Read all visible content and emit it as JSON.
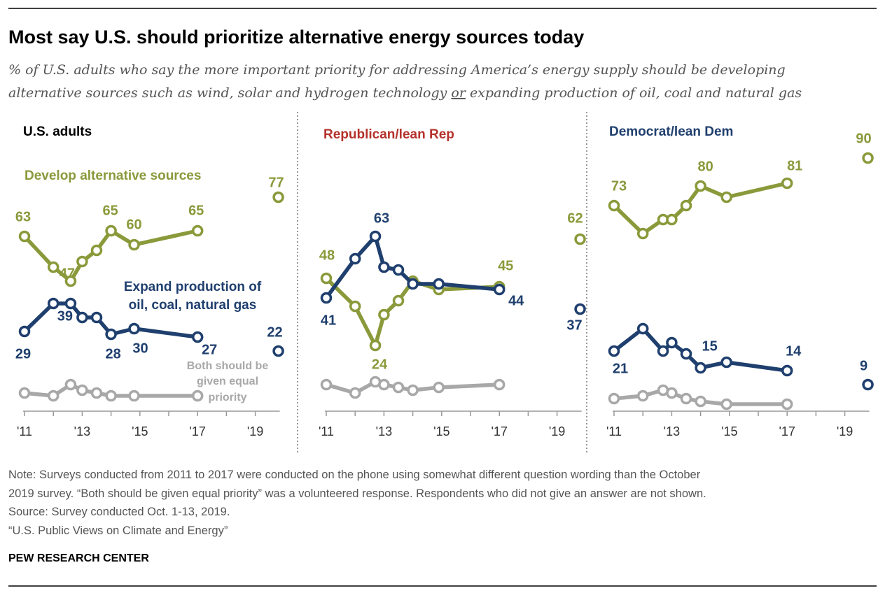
{
  "title": "Most say U.S. should prioritize alternative energy sources today",
  "subtitle": {
    "line1": "% of U.S. adults who say the more important priority for addressing America’s energy supply should be developing",
    "line2_a": "alternative sources such as wind, solar and hydrogen technology ",
    "line2_or": "or",
    "line2_b": " expanding production of oil, coal and natural gas"
  },
  "colors": {
    "alt": "#8a9a3b",
    "fossil": "#1f3f6e",
    "both": "#a8a8a8",
    "rep": "#b5322c",
    "dem": "#1f3f6e"
  },
  "annotations": {
    "alt": "Develop alternative sources",
    "fossil1": "Expand production of",
    "fossil2": "oil, coal, natural gas",
    "both1": "Both should be",
    "both2": "given equal",
    "both3": "priority"
  },
  "chart_data": [
    {
      "type": "line",
      "title": "U.S. adults",
      "x_ticks": [
        "'11",
        "'13",
        "'15",
        "'17",
        "'19"
      ],
      "ylim": [
        0,
        100
      ],
      "series": [
        {
          "name": "Develop alternative sources",
          "x": [
            2011,
            2012,
            2012.6,
            2013,
            2013.5,
            2014,
            2014.8,
            2017,
            2019.8
          ],
          "values": [
            63,
            52,
            47,
            54,
            58,
            65,
            60,
            65,
            77
          ]
        },
        {
          "name": "Expand production of oil, coal, natural gas",
          "x": [
            2011,
            2012,
            2012.6,
            2013,
            2013.5,
            2014,
            2014.8,
            2017,
            2019.8
          ],
          "values": [
            29,
            39,
            39,
            34,
            34,
            28,
            30,
            27,
            22
          ]
        },
        {
          "name": "Both should be given equal priority",
          "x": [
            2011,
            2012,
            2012.6,
            2013,
            2013.5,
            2014,
            2014.8,
            2017
          ],
          "values": [
            7,
            6,
            10,
            8,
            7,
            6,
            6,
            6
          ]
        }
      ]
    },
    {
      "type": "line",
      "title": "Republican/lean Rep",
      "x_ticks": [
        "'11",
        "'13",
        "'15",
        "'17",
        "'19"
      ],
      "ylim": [
        0,
        100
      ],
      "series": [
        {
          "name": "Develop alternative sources",
          "x": [
            2011,
            2012,
            2012.7,
            2013,
            2013.5,
            2014,
            2014.9,
            2017,
            2019.8
          ],
          "values": [
            48,
            38,
            24,
            35,
            40,
            47,
            44,
            45,
            62
          ]
        },
        {
          "name": "Expand production of oil, coal, natural gas",
          "x": [
            2011,
            2012,
            2012.7,
            2013,
            2013.5,
            2014,
            2014.9,
            2017,
            2019.8
          ],
          "values": [
            41,
            55,
            63,
            52,
            51,
            46,
            46,
            44,
            37
          ]
        },
        {
          "name": "Both should be given equal priority",
          "x": [
            2011,
            2012,
            2012.7,
            2013,
            2013.5,
            2014,
            2014.9,
            2017
          ],
          "values": [
            10,
            7,
            11,
            10,
            9,
            8,
            9,
            10
          ]
        }
      ]
    },
    {
      "type": "line",
      "title": "Democrat/lean Dem",
      "x_ticks": [
        "'11",
        "'13",
        "'15",
        "'17",
        "'19"
      ],
      "ylim": [
        0,
        100
      ],
      "series": [
        {
          "name": "Develop alternative sources",
          "x": [
            2011,
            2012,
            2012.7,
            2013,
            2013.5,
            2014,
            2014.9,
            2017,
            2019.8
          ],
          "values": [
            73,
            63,
            68,
            68,
            73,
            80,
            76,
            81,
            90
          ]
        },
        {
          "name": "Expand production of oil, coal, natural gas",
          "x": [
            2011,
            2012,
            2012.7,
            2013,
            2013.5,
            2014,
            2014.9,
            2017,
            2019.8
          ],
          "values": [
            21,
            29,
            21,
            24,
            20,
            15,
            17,
            14,
            9
          ]
        },
        {
          "name": "Both should be given equal priority",
          "x": [
            2011,
            2012,
            2012.7,
            2013,
            2013.5,
            2014,
            2014.9,
            2017
          ],
          "values": [
            4,
            5,
            7,
            6,
            4,
            3,
            2,
            2
          ]
        }
      ]
    }
  ],
  "notes": [
    "Note: Surveys conducted from 2011 to 2017 were conducted on the phone using somewhat different question wording than the October",
    "2019 survey. “Both should be given equal priority” was a volunteered response. Respondents who did not give an answer are not shown.",
    "Source: Survey conducted Oct. 1-13, 2019.",
    "“U.S. Public Views on Climate and Energy”"
  ],
  "footer": "PEW RESEARCH CENTER"
}
